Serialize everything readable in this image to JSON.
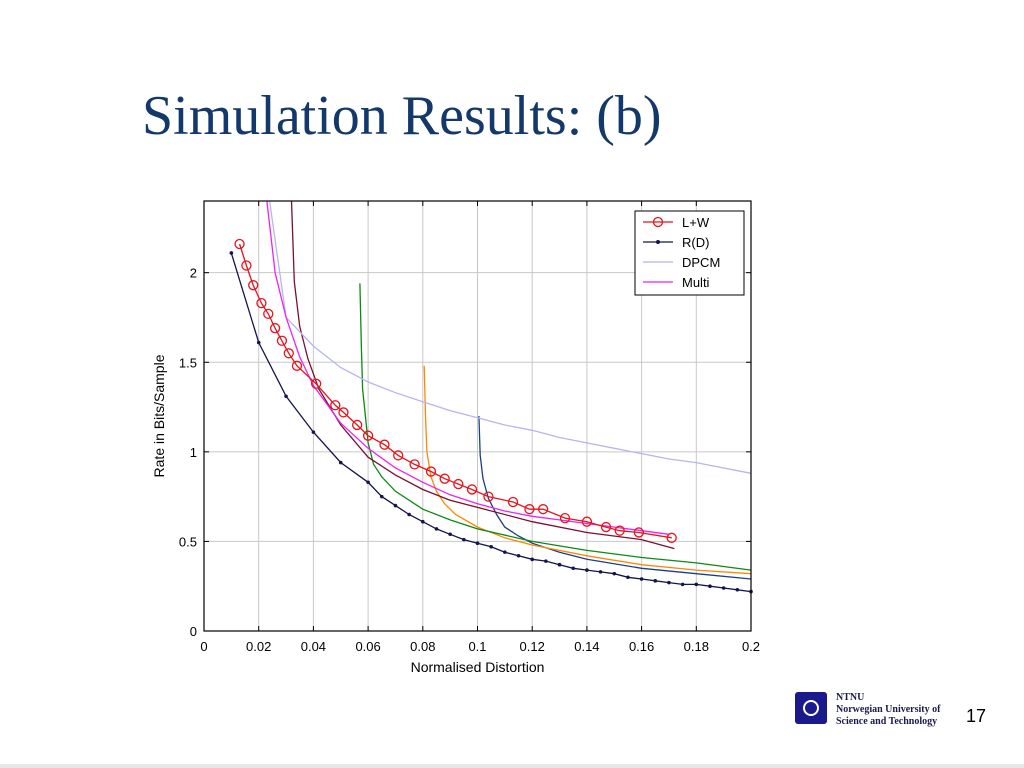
{
  "slide": {
    "title": "Simulation Results: (b)",
    "page_number": "17",
    "institution_short": "NTNU",
    "institution_line1": "Norwegian University of",
    "institution_line2": "Science and Technology"
  },
  "chart_data": {
    "type": "line",
    "title": "",
    "xlabel": "Normalised Distortion",
    "ylabel": "Rate in Bits/Sample",
    "xlim": [
      0,
      0.2
    ],
    "ylim": [
      0,
      2.4
    ],
    "xticks": [
      0,
      0.02,
      0.04,
      0.06,
      0.08,
      0.1,
      0.12,
      0.14,
      0.16,
      0.18,
      0.2
    ],
    "xtick_labels": [
      "0",
      "0.02",
      "0.04",
      "0.06",
      "0.08",
      "0.1",
      "0.12",
      "0.14",
      "0.16",
      "0.18",
      "0.2"
    ],
    "yticks": [
      0,
      0.5,
      1,
      1.5,
      2
    ],
    "ytick_labels": [
      "0",
      "0.5",
      "1",
      "1.5",
      "2"
    ],
    "grid": true,
    "legend_position": "top-right",
    "series": [
      {
        "name": "L+W",
        "color": "#e8121b",
        "marker": "circle",
        "legend": true,
        "x": [
          0.013,
          0.0155,
          0.018,
          0.021,
          0.0235,
          0.026,
          0.0285,
          0.031,
          0.034,
          0.041,
          0.048,
          0.051,
          0.056,
          0.06,
          0.066,
          0.071,
          0.077,
          0.083,
          0.088,
          0.093,
          0.098,
          0.104,
          0.113,
          0.119,
          0.124,
          0.132,
          0.14,
          0.147,
          0.152,
          0.159,
          0.171
        ],
        "y": [
          2.16,
          2.04,
          1.93,
          1.83,
          1.77,
          1.69,
          1.62,
          1.55,
          1.48,
          1.38,
          1.26,
          1.22,
          1.15,
          1.09,
          1.04,
          0.98,
          0.93,
          0.89,
          0.85,
          0.82,
          0.79,
          0.75,
          0.72,
          0.68,
          0.68,
          0.63,
          0.61,
          0.58,
          0.56,
          0.55,
          0.52
        ]
      },
      {
        "name": "R(D)",
        "color": "#14144e",
        "marker": "dot",
        "legend": true,
        "x": [
          0.01,
          0.02,
          0.03,
          0.04,
          0.05,
          0.06,
          0.065,
          0.07,
          0.075,
          0.08,
          0.085,
          0.09,
          0.095,
          0.1,
          0.105,
          0.11,
          0.115,
          0.12,
          0.125,
          0.13,
          0.135,
          0.14,
          0.145,
          0.15,
          0.155,
          0.16,
          0.165,
          0.17,
          0.175,
          0.18,
          0.185,
          0.19,
          0.195,
          0.2
        ],
        "y": [
          2.11,
          1.61,
          1.31,
          1.11,
          0.94,
          0.83,
          0.75,
          0.7,
          0.65,
          0.61,
          0.57,
          0.54,
          0.51,
          0.49,
          0.47,
          0.44,
          0.42,
          0.4,
          0.39,
          0.37,
          0.35,
          0.34,
          0.33,
          0.32,
          0.3,
          0.29,
          0.28,
          0.27,
          0.26,
          0.26,
          0.25,
          0.24,
          0.23,
          0.22
        ]
      },
      {
        "name": "DPCM",
        "color": "#b5b5f0",
        "marker": "none",
        "legend": true,
        "x": [
          0.024,
          0.03,
          0.04,
          0.05,
          0.06,
          0.07,
          0.08,
          0.09,
          0.1,
          0.11,
          0.12,
          0.13,
          0.14,
          0.15,
          0.16,
          0.17,
          0.18,
          0.19,
          0.2
        ],
        "y": [
          2.4,
          1.75,
          1.59,
          1.47,
          1.39,
          1.33,
          1.28,
          1.23,
          1.19,
          1.15,
          1.12,
          1.08,
          1.05,
          1.02,
          0.99,
          0.96,
          0.94,
          0.91,
          0.88
        ]
      },
      {
        "name": "Multi",
        "color": "#ee22ee",
        "marker": "none",
        "legend": true,
        "x": [
          0.023,
          0.026,
          0.03,
          0.035,
          0.04,
          0.05,
          0.06,
          0.07,
          0.08,
          0.09,
          0.1,
          0.11,
          0.12,
          0.13,
          0.14,
          0.15,
          0.16,
          0.17
        ],
        "y": [
          2.4,
          2.0,
          1.75,
          1.53,
          1.37,
          1.16,
          1.02,
          0.91,
          0.83,
          0.76,
          0.71,
          0.67,
          0.64,
          0.62,
          0.6,
          0.58,
          0.56,
          0.54
        ]
      },
      {
        "name": "",
        "color": "#7a1030",
        "marker": "none",
        "legend": false,
        "x": [
          0.032,
          0.033,
          0.035,
          0.038,
          0.042,
          0.05,
          0.06,
          0.07,
          0.08,
          0.09,
          0.1,
          0.12,
          0.14,
          0.16,
          0.172
        ],
        "y": [
          2.4,
          1.95,
          1.7,
          1.52,
          1.35,
          1.15,
          0.97,
          0.87,
          0.79,
          0.73,
          0.69,
          0.61,
          0.55,
          0.51,
          0.46
        ]
      },
      {
        "name": "",
        "color": "#0b8a12",
        "marker": "none",
        "legend": false,
        "x": [
          0.057,
          0.0575,
          0.058,
          0.059,
          0.06,
          0.062,
          0.065,
          0.07,
          0.08,
          0.09,
          0.1,
          0.12,
          0.14,
          0.16,
          0.18,
          0.2
        ],
        "y": [
          1.94,
          1.6,
          1.35,
          1.2,
          1.05,
          0.93,
          0.86,
          0.78,
          0.68,
          0.62,
          0.57,
          0.5,
          0.45,
          0.41,
          0.38,
          0.34
        ]
      },
      {
        "name": "",
        "color": "#ff8800",
        "marker": "none",
        "legend": false,
        "x": [
          0.0805,
          0.081,
          0.0815,
          0.083,
          0.085,
          0.088,
          0.092,
          0.1,
          0.11,
          0.12,
          0.14,
          0.16,
          0.18,
          0.2
        ],
        "y": [
          1.48,
          1.2,
          1.0,
          0.86,
          0.78,
          0.71,
          0.65,
          0.58,
          0.52,
          0.48,
          0.42,
          0.37,
          0.34,
          0.32
        ]
      },
      {
        "name": "",
        "color": "#1a3f8a",
        "marker": "none",
        "legend": false,
        "x": [
          0.1005,
          0.101,
          0.102,
          0.104,
          0.107,
          0.11,
          0.115,
          0.12,
          0.13,
          0.14,
          0.16,
          0.18,
          0.2
        ],
        "y": [
          1.2,
          0.98,
          0.85,
          0.74,
          0.65,
          0.58,
          0.53,
          0.49,
          0.44,
          0.4,
          0.35,
          0.32,
          0.29
        ]
      }
    ]
  }
}
